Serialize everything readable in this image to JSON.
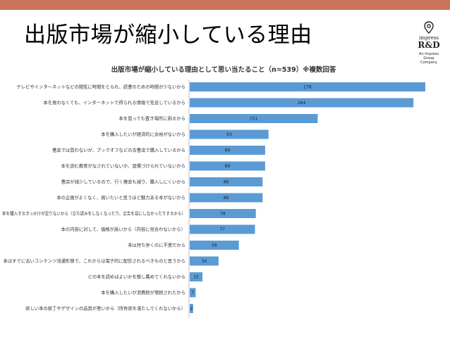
{
  "slide": {
    "title": "出版市場が縮小している理由",
    "accent_color": "#c97358"
  },
  "logo": {
    "icon": "location-pin-icon",
    "line1": "impress",
    "line2": "R&D",
    "line3": "An Impress",
    "line4": "Group Company"
  },
  "chart_data": {
    "type": "bar",
    "orientation": "horizontal",
    "title": "出版市場が縮小している理由として思い当たること（n=539）※複数回答",
    "bar_color": "#5b9bd5",
    "grid": false,
    "categories": [
      "テレビやインターネットなどの閲覧に時間をとられ、読書のための時間が少ないから",
      "本を買わなくても、インターネットで得られる情報で充足しているから",
      "本を買っても置き場所に困るから",
      "本を購入したいが経済的に余裕がないから",
      "書店では買わないが、ブックオフなどの古書店で購入しているから",
      "本を読む教育がなされていないか、習慣づけられていないから",
      "書店が減少しているので、行く機会も減り、購入しにくいから",
      "本の企画がよくなく、買いたいと思うほど魅力ある本がないから",
      "本を購入するきっかけが足りないから（立ち読みをしなくなったり、広告を目にしなかったりするから）",
      "本の内容に対して、価格が高いから（内容に見合わないから）",
      "本は持ち歩くのに不便だから",
      "本はすでに古いコンテンツ流通形態で、これからは電子的に配信されるべきものと思うから",
      "どの本を読めばよいかを推し薦めてくれないから",
      "本を購入したいが消費税が増税されたから",
      "欲しい本の装丁やデザインの品質が悪いから（所有欲を満たしてくれないから）"
    ],
    "values": [
      278,
      264,
      151,
      93,
      89,
      89,
      86,
      86,
      78,
      77,
      58,
      34,
      15,
      7,
      4
    ],
    "xlim": [
      0,
      278
    ]
  }
}
